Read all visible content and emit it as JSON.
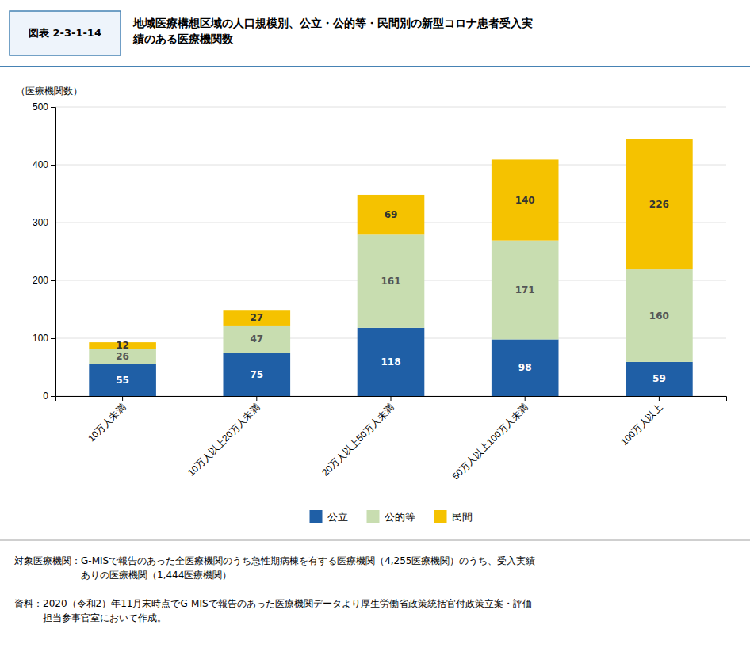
{
  "chart_data": {
    "type": "bar",
    "figure_label": "図表 2-3-1-14",
    "title": "地域医療構想区域の人口規模別、公立・公的等・民間別の新型コロナ患者受入実\n績のある医療機関数",
    "categories": [
      "10万人未満",
      "10万人以上20万人未満",
      "20万人以上50万人未満",
      "50万人以上100万人未満",
      "100万人以上"
    ],
    "series": [
      {
        "name": "公立",
        "color": "#1F5FA6",
        "values": [
          55,
          75,
          118,
          98,
          59
        ]
      },
      {
        "name": "公的等",
        "color": "#C8DDB0",
        "values": [
          26,
          47,
          161,
          171,
          160
        ]
      },
      {
        "name": "民間",
        "color": "#F5C200",
        "values": [
          12,
          27,
          69,
          140,
          226
        ]
      }
    ],
    "stacked": true,
    "data_labels": true,
    "ylabel": "（医療機関数）",
    "ylim": [
      0,
      500
    ],
    "yticks": [
      0,
      100,
      200,
      300,
      400,
      500
    ],
    "grid": true,
    "legend": "bottom",
    "footnotes": [
      "対象医療機関：G-MISで報告のあった全医療機関のうち急性期病棟を有する医療機関（4,255医療機関）のうち、受入実績\n　　　　　　　ありの医療機関（1,444医療機関）",
      "資料：2020（令和2）年11月末時点でG-MISで報告のあった医療機関データより厚生労働省政策統括官付政策立案・評価\n　　　担当参事官室において作成。"
    ]
  }
}
